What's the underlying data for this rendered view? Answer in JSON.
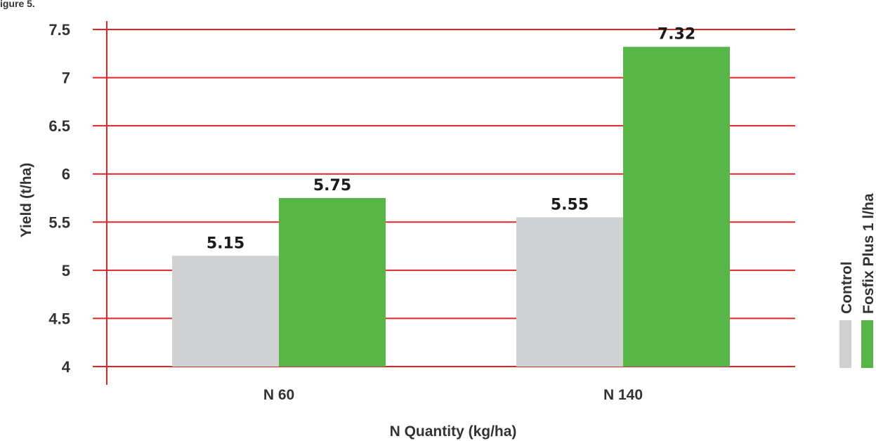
{
  "figure_label": "igure 5.",
  "chart_data": {
    "type": "bar",
    "categories": [
      "N 60",
      "N 140"
    ],
    "series": [
      {
        "name": "Control",
        "values": [
          5.15,
          5.55
        ],
        "labels": [
          "5.15",
          "5.55"
        ],
        "color": "#d0d1d3"
      },
      {
        "name": "Fosfix Plus 1 l/ha",
        "values": [
          5.75,
          7.32
        ],
        "labels": [
          "5.75",
          "7.32"
        ],
        "color": "#58b548"
      }
    ],
    "xlabel": "N Quantity (kg/ha)",
    "ylabel": "Yield (t/ha)",
    "ylim": [
      4,
      7.5
    ],
    "yticks": [
      4,
      4.5,
      5,
      5.5,
      6,
      6.5,
      7,
      7.5
    ],
    "ytick_labels": [
      "4",
      "4.5",
      "5",
      "5.5",
      "6",
      "6.5",
      "7",
      "7.5"
    ],
    "grid": true,
    "grid_color": "#e0262b",
    "axis_color": "#e0262b",
    "legend_position": "right"
  }
}
